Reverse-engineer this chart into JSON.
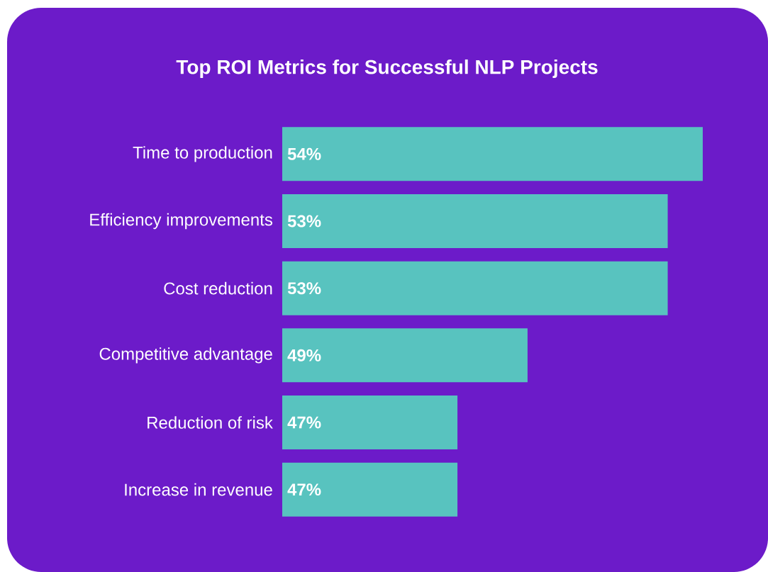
{
  "chart_data": {
    "type": "bar",
    "orientation": "horizontal",
    "title": "Top ROI Metrics for Successful NLP Projects",
    "categories": [
      "Time to production",
      "Efficiency improvements",
      "Cost reduction",
      "Competitive advantage",
      "Reduction of risk",
      "Increase in revenue"
    ],
    "values": [
      54,
      53,
      53,
      49,
      47,
      47
    ],
    "value_labels": [
      "54%",
      "53%",
      "53%",
      "49%",
      "47%",
      "47%"
    ],
    "color": "#58c3bf",
    "xlim": [
      42,
      54
    ]
  }
}
